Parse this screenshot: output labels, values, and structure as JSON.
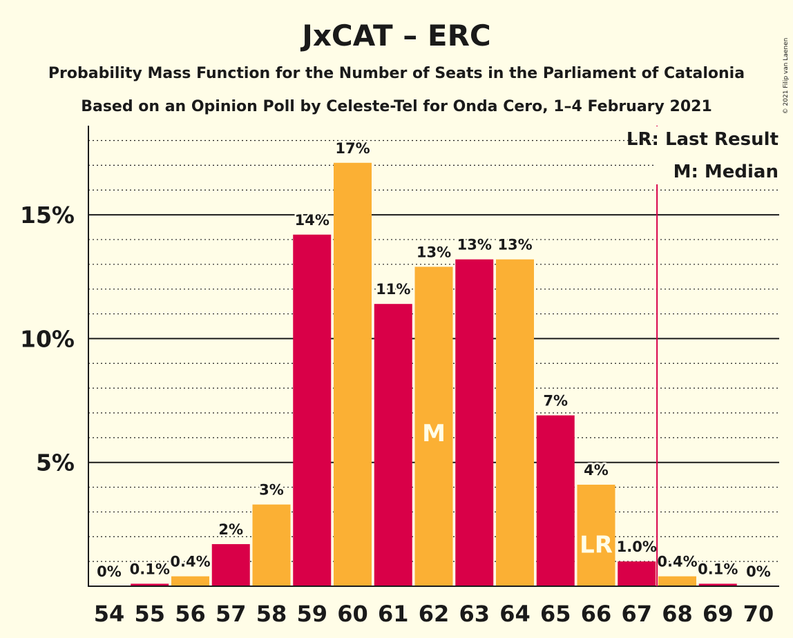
{
  "title": "JxCAT – ERC",
  "subtitle_1": "Probability Mass Function for the Number of Seats in the Parliament of Catalonia",
  "subtitle_2": "Based on an Opinion Poll by Celeste-Tel for Onda Cero, 1–4 February 2021",
  "copyright": "© 2021 Filip van Laenen",
  "legend": {
    "last_result": "LR: Last Result",
    "median": "M: Median"
  },
  "colors": {
    "background": "#fffde7",
    "bar_even": "#fbb034",
    "bar_odd": "#d90048",
    "last_result_line": "#d90048",
    "text": "#1a1a1a"
  },
  "chart_data": {
    "type": "bar",
    "categories": [
      "54",
      "55",
      "56",
      "57",
      "58",
      "59",
      "60",
      "61",
      "62",
      "63",
      "64",
      "65",
      "66",
      "67",
      "68",
      "69",
      "70"
    ],
    "values": [
      0,
      0.1,
      0.4,
      1.7,
      3.3,
      14.2,
      17.1,
      11.4,
      12.9,
      13.2,
      13.2,
      6.9,
      4.1,
      1.0,
      0.4,
      0.1,
      0
    ],
    "data_labels": [
      "0%",
      "0.1%",
      "0.4%",
      "2%",
      "3%",
      "14%",
      "17%",
      "11%",
      "13%",
      "13%",
      "13%",
      "7%",
      "4%",
      "1.0%",
      "0.4%",
      "0.1%",
      "0%"
    ],
    "y_ticks": [
      {
        "value": 5,
        "label": "5%"
      },
      {
        "value": 10,
        "label": "10%"
      },
      {
        "value": 15,
        "label": "15%"
      }
    ],
    "ylim": [
      0,
      18.6
    ],
    "minor_gridlines_every": 1,
    "median_seat": "62",
    "median_marker": "M",
    "last_result_seat": "66",
    "last_result_marker": "LR",
    "last_result_line_position": 67.5,
    "legend_placement": "top-right",
    "xlabel": "",
    "ylabel": ""
  }
}
